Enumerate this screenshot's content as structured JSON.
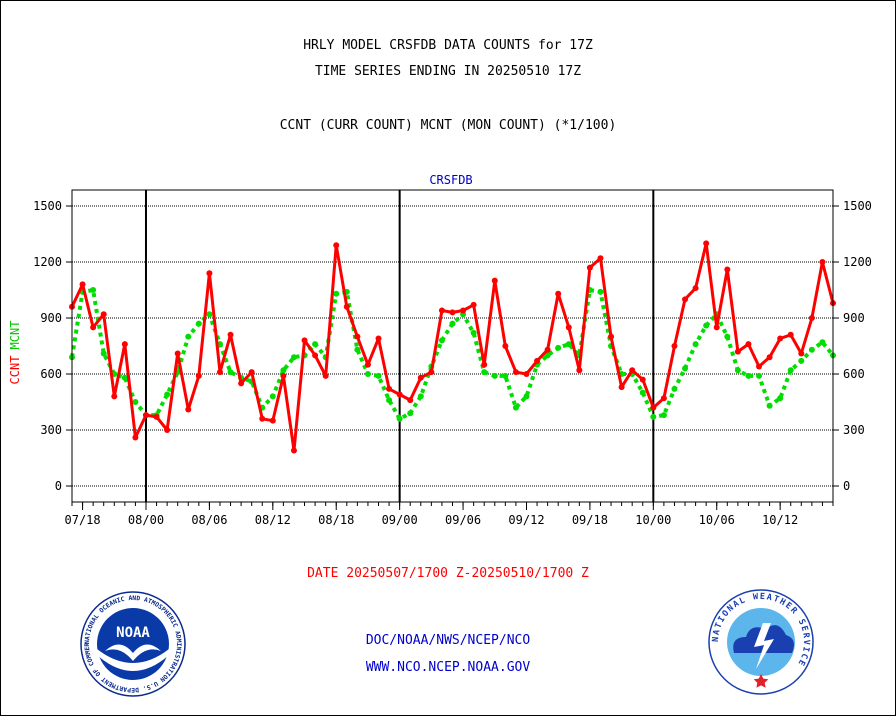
{
  "header": {
    "title_line1": "HRLY MODEL CRSFDB DATA COUNTS for 17Z",
    "title_line2": "TIME SERIES ENDING IN 20250510 17Z",
    "subtitle": "CCNT (CURR COUNT) MCNT (MON COUNT) (*1/100)"
  },
  "footer": {
    "date_range": "DATE 20250507/1700 Z-20250510/1700 Z",
    "org": "DOC/NOAA/NWS/NCEP/NCO",
    "url": "WWW.NCO.NCEP.NOAA.GOV"
  },
  "logos": {
    "noaa_text": "NOAA",
    "nws_ring_text": "NATIONAL WEATHER SERVICE",
    "noaa_ring_text": "NATIONAL OCEANIC AND ATMOSPHERIC ADMINISTRATION U.S. DEPARTMENT OF COMMERCE"
  },
  "colors": {
    "ccnt": "#ff0000",
    "mcnt": "#00dd00",
    "label_blue": "#0000cc",
    "axis": "#000000"
  },
  "chart_data": {
    "type": "line",
    "title": "CRSFDB",
    "ylabel_left": "CCNT",
    "ylabel_right": "MCNT",
    "ylim": [
      -100,
      1580
    ],
    "yticks": [
      0,
      300,
      600,
      900,
      1200,
      1500
    ],
    "ytick_labels": [
      "0",
      "300",
      "600",
      "900",
      "1200",
      "1500"
    ],
    "x_tick_labels": [
      "07/18",
      "08/00",
      "08/06",
      "08/12",
      "08/18",
      "09/00",
      "09/06",
      "09/12",
      "09/18",
      "10/00",
      "10/06",
      "10/12"
    ],
    "grid": true,
    "x_hours_from_start": [
      0,
      1,
      2,
      3,
      4,
      5,
      6,
      7,
      8,
      9,
      10,
      11,
      12,
      13,
      14,
      15,
      16,
      17,
      18,
      19,
      20,
      21,
      22,
      23,
      24,
      25,
      26,
      27,
      28,
      29,
      30,
      31,
      32,
      33,
      34,
      35,
      36,
      37,
      38,
      39,
      40,
      41,
      42,
      43,
      44,
      45,
      46,
      47,
      48,
      49,
      50,
      51,
      52,
      53,
      54,
      55,
      56,
      57,
      58,
      59,
      60,
      61,
      62,
      63,
      64,
      65,
      66,
      67,
      68,
      69,
      70,
      71,
      72
    ],
    "series": [
      {
        "name": "CCNT",
        "style": "solid",
        "values": [
          960,
          1080,
          850,
          920,
          480,
          760,
          260,
          380,
          370,
          300,
          710,
          410,
          590,
          1140,
          610,
          810,
          550,
          610,
          360,
          350,
          590,
          190,
          780,
          700,
          590,
          1290,
          960,
          800,
          650,
          790,
          520,
          490,
          460,
          580,
          610,
          940,
          930,
          940,
          970,
          650,
          1100,
          750,
          610,
          600,
          670,
          730,
          1030,
          850,
          620,
          1170,
          1220,
          800,
          530,
          620,
          570,
          420,
          470,
          750,
          1000,
          1060,
          1300,
          850,
          1160,
          720,
          760,
          640,
          690,
          790,
          810,
          710,
          900,
          1200,
          980
        ]
      },
      {
        "name": "MCNT",
        "style": "dotted",
        "values": [
          690,
          1040,
          1050,
          710,
          600,
          580,
          450,
          380,
          380,
          490,
          610,
          800,
          870,
          920,
          760,
          610,
          580,
          560,
          420,
          480,
          620,
          690,
          700,
          760,
          690,
          1030,
          1040,
          730,
          600,
          590,
          460,
          360,
          390,
          480,
          640,
          780,
          870,
          920,
          820,
          610,
          590,
          590,
          420,
          480,
          650,
          700,
          740,
          760,
          700,
          1050,
          1040,
          750,
          600,
          600,
          500,
          370,
          380,
          520,
          630,
          760,
          860,
          920,
          800,
          620,
          590,
          590,
          430,
          470,
          620,
          670,
          730,
          770,
          700
        ]
      }
    ]
  }
}
